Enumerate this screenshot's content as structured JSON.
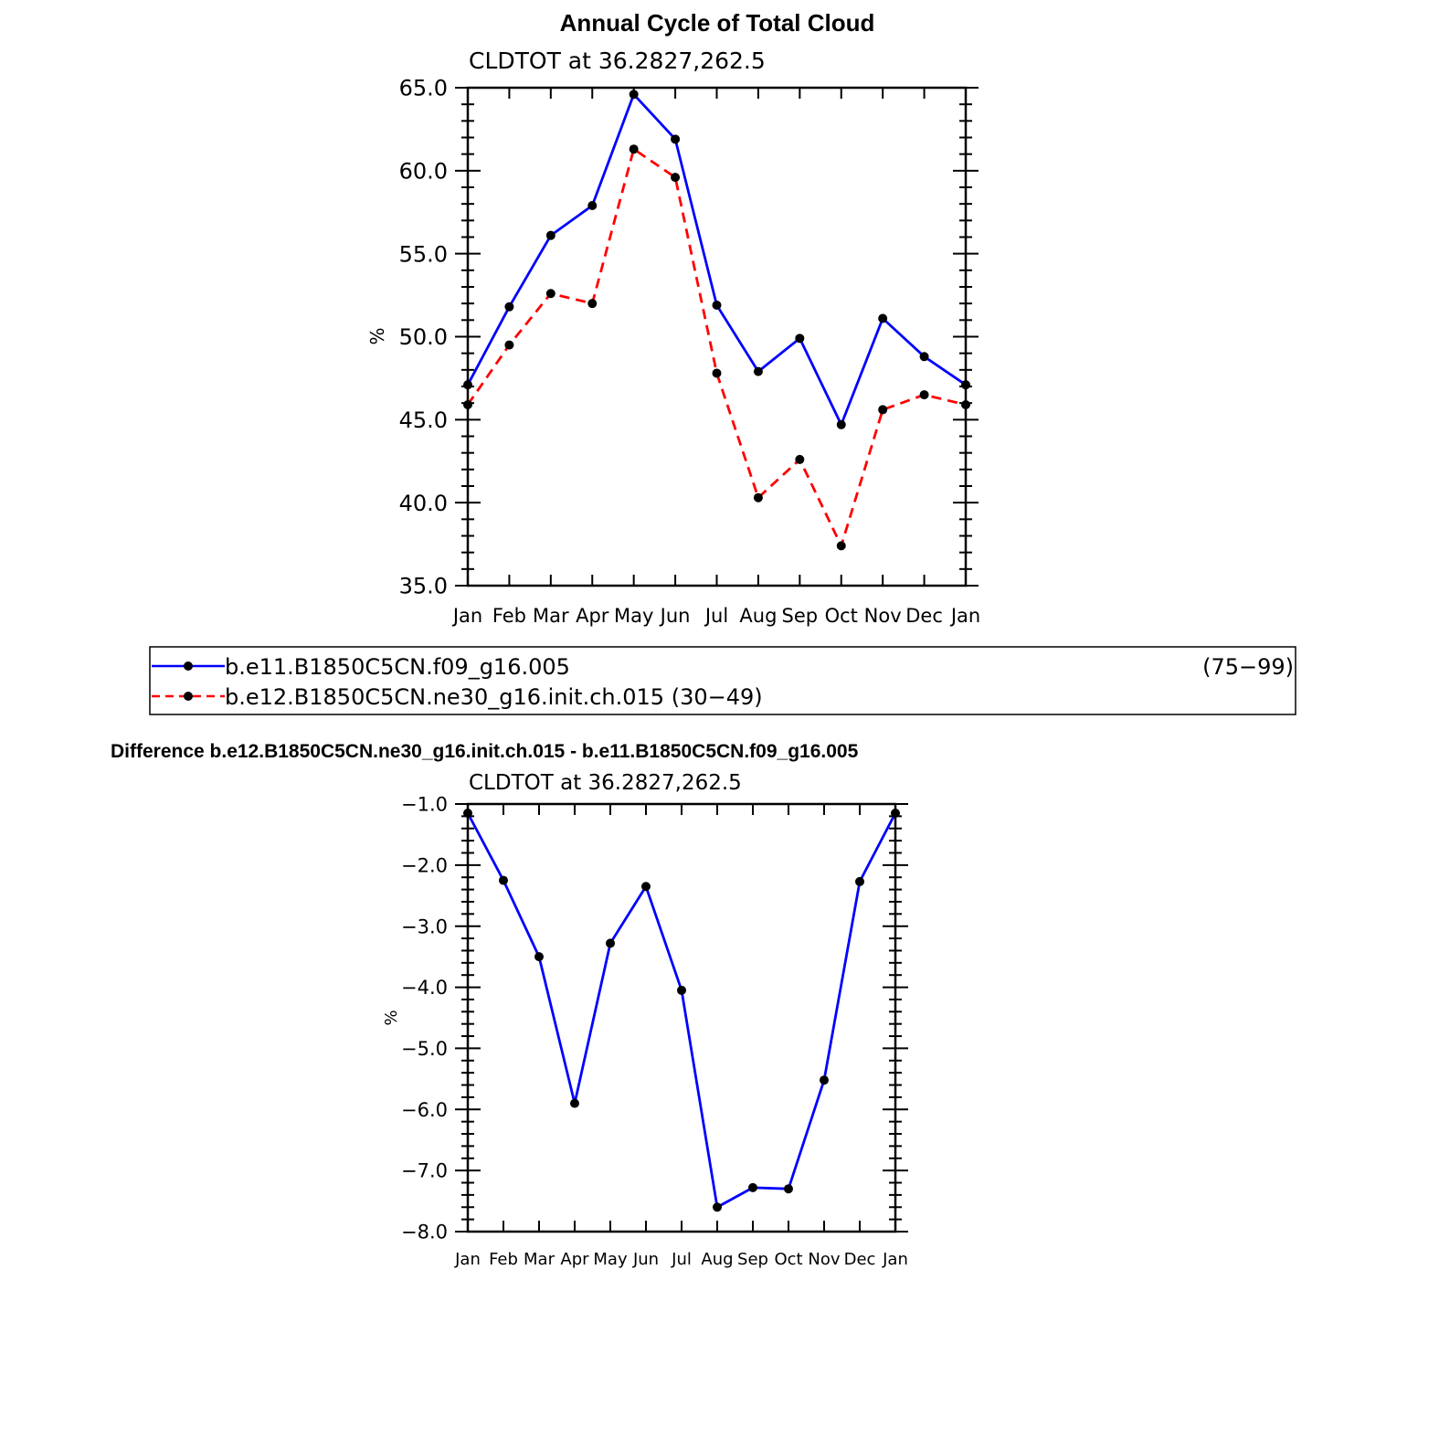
{
  "title": "Annual Cycle of Total Cloud",
  "colors": {
    "series1": "#0000ff",
    "series2": "#ff0000",
    "marker": "#000000"
  },
  "chart_data": [
    {
      "type": "line",
      "subtitle": "CLDTOT at 36.2827,262.5",
      "ylabel": "%",
      "categories": [
        "Jan",
        "Feb",
        "Mar",
        "Apr",
        "May",
        "Jun",
        "Jul",
        "Aug",
        "Sep",
        "Oct",
        "Nov",
        "Dec",
        "Jan"
      ],
      "ylim": [
        35.0,
        65.0
      ],
      "yticks": [
        "35.0",
        "40.0",
        "45.0",
        "50.0",
        "55.0",
        "60.0",
        "65.0"
      ],
      "series": [
        {
          "name": "b.e11.B1850C5CN.f09_g16.005",
          "years": "(75−99)",
          "style": "solid",
          "values": [
            47.1,
            51.8,
            56.1,
            57.9,
            64.6,
            61.9,
            51.9,
            47.9,
            49.9,
            44.7,
            51.1,
            48.8,
            47.1
          ]
        },
        {
          "name": "b.e12.B1850C5CN.ne30_g16.init.ch.015",
          "years": "(30−49)",
          "style": "dashed",
          "values": [
            45.9,
            49.5,
            52.6,
            52.0,
            61.3,
            59.6,
            47.8,
            40.3,
            42.6,
            37.4,
            45.6,
            46.5,
            45.9
          ]
        }
      ],
      "legend_position": "below"
    },
    {
      "type": "line",
      "title": "Difference b.e12.B1850C5CN.ne30_g16.init.ch.015 - b.e11.B1850C5CN.f09_g16.005",
      "subtitle": "CLDTOT at 36.2827,262.5",
      "ylabel": "%",
      "categories": [
        "Jan",
        "Feb",
        "Mar",
        "Apr",
        "May",
        "Jun",
        "Jul",
        "Aug",
        "Sep",
        "Oct",
        "Nov",
        "Dec",
        "Jan"
      ],
      "ylim": [
        -8.0,
        -1.0
      ],
      "yticks": [
        "−8.0",
        "−7.0",
        "−6.0",
        "−5.0",
        "−4.0",
        "−3.0",
        "−2.0",
        "−1.0"
      ],
      "series": [
        {
          "style": "solid",
          "values": [
            -1.15,
            -2.25,
            -3.5,
            -5.9,
            -3.28,
            -2.35,
            -4.05,
            -7.6,
            -7.28,
            -7.3,
            -5.52,
            -2.27,
            -1.15
          ]
        }
      ]
    }
  ]
}
